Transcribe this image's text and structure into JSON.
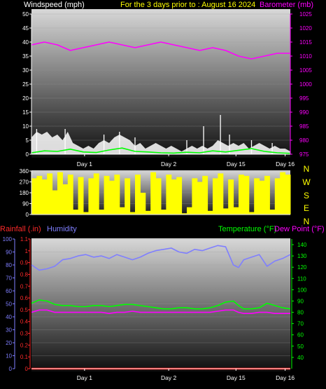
{
  "header": {
    "windspeed_label": "Windspeed (mph)",
    "title": "For the 3 days prior to : August 16 2024",
    "barometer_label": "Barometer (mb)"
  },
  "lower_header": {
    "rainfall_label": "Rainfall (.in)",
    "humidity_label": "Humidity",
    "temperature_label": "Temperature (°F)",
    "dewpoint_label": "Dew Point (°F)"
  },
  "colors": {
    "windspeed": "#ffffff",
    "gust": "#ffffff",
    "wind_avg": "#00ff00",
    "barometer": "#ff00ff",
    "direction": "#ffff00",
    "humidity": "#7f7fff",
    "temperature": "#00ff00",
    "dewpoint": "#ff00ff",
    "rainfall": "#ff0000",
    "rainfall_axis": "#ff2a2a",
    "humidity_axis": "#7f7fff",
    "temperature_axis": "#00ff00",
    "barometer_axis": "#ff00ff"
  },
  "chart_data": [
    {
      "type": "line",
      "x_ticks": [
        "Day 1",
        "Day 2",
        "Day 15",
        "Day 16"
      ],
      "x_tick_pos": [
        0.205,
        0.53,
        0.79,
        0.98
      ],
      "left_axis": {
        "ticks": [
          "0",
          "5",
          "10",
          "15",
          "20",
          "25",
          "30",
          "35",
          "40",
          "45",
          "50"
        ],
        "ylim": [
          0,
          50
        ]
      },
      "right_axis": {
        "ticks": [
          "975",
          "980",
          "985",
          "990",
          "995",
          "1000",
          "1005",
          "1010",
          "1015",
          "1020",
          "1025"
        ],
        "ylim": [
          975,
          1025
        ]
      },
      "series": [
        {
          "key": "windspeed",
          "axis": "left",
          "x": [
            0.0,
            0.02,
            0.04,
            0.06,
            0.08,
            0.1,
            0.12,
            0.14,
            0.16,
            0.18,
            0.2,
            0.22,
            0.24,
            0.26,
            0.28,
            0.3,
            0.32,
            0.34,
            0.36,
            0.38,
            0.4,
            0.42,
            0.44,
            0.46,
            0.48,
            0.5,
            0.52,
            0.54,
            0.56,
            0.58,
            0.6,
            0.62,
            0.64,
            0.66,
            0.68,
            0.7,
            0.72,
            0.74,
            0.76,
            0.78,
            0.8,
            0.82,
            0.84,
            0.86,
            0.88,
            0.9,
            0.92,
            0.94,
            0.96,
            0.98,
            1.0
          ],
          "y": [
            6,
            8,
            7,
            8,
            6,
            7,
            5,
            8,
            4,
            3,
            2,
            3,
            2,
            4,
            5,
            4,
            6,
            7,
            6,
            5,
            3,
            4,
            2,
            3,
            4,
            3,
            2,
            3,
            2,
            1,
            2,
            3,
            2,
            3,
            2,
            3,
            5,
            4,
            3,
            4,
            3,
            4,
            2,
            3,
            4,
            3,
            2,
            3,
            2,
            2,
            1
          ]
        },
        {
          "key": "gust",
          "axis": "left",
          "x": [
            0.02,
            0.13,
            0.28,
            0.34,
            0.4,
            0.6,
            0.665,
            0.73,
            0.765,
            0.85,
            0.93
          ],
          "y": [
            9,
            9,
            7,
            8,
            6,
            5,
            10,
            14,
            7,
            5,
            4
          ]
        },
        {
          "key": "wind_avg",
          "axis": "left",
          "x": [
            0.0,
            0.05,
            0.1,
            0.15,
            0.2,
            0.25,
            0.3,
            0.35,
            0.4,
            0.45,
            0.5,
            0.55,
            0.6,
            0.65,
            0.7,
            0.75,
            0.8,
            0.85,
            0.9,
            0.95,
            1.0
          ],
          "y": [
            0.5,
            1.2,
            1.0,
            1.8,
            0.8,
            0.6,
            1.5,
            2.2,
            1.0,
            0.8,
            0.5,
            0.4,
            0.7,
            0.5,
            1.2,
            0.8,
            1.4,
            2.0,
            1.0,
            0.5,
            0.3
          ]
        },
        {
          "key": "barometer",
          "axis": "right",
          "x": [
            0.0,
            0.05,
            0.1,
            0.15,
            0.2,
            0.25,
            0.3,
            0.35,
            0.4,
            0.45,
            0.5,
            0.55,
            0.6,
            0.65,
            0.7,
            0.75,
            0.8,
            0.85,
            0.9,
            0.95,
            1.0
          ],
          "y": [
            1014,
            1015,
            1014,
            1012,
            1013,
            1014,
            1015,
            1014,
            1013,
            1014,
            1015,
            1014,
            1013,
            1012,
            1013,
            1012,
            1010,
            1009,
            1010,
            1011,
            1011
          ]
        }
      ]
    },
    {
      "type": "area",
      "left_ticks": [
        "0",
        "90",
        "180",
        "270",
        "360"
      ],
      "ylim": [
        0,
        360
      ],
      "direction_labels": [
        "N",
        "W",
        "S",
        "E",
        "N"
      ],
      "x_ticks": [
        "Day 1",
        "Day 2",
        "Day 15",
        "Day 16"
      ],
      "x_tick_pos": [
        0.205,
        0.53,
        0.79,
        0.98
      ],
      "series": [
        {
          "key": "direction",
          "x": [
            0.0,
            0.02,
            0.04,
            0.06,
            0.08,
            0.1,
            0.12,
            0.14,
            0.16,
            0.18,
            0.2,
            0.22,
            0.24,
            0.26,
            0.28,
            0.3,
            0.32,
            0.34,
            0.36,
            0.38,
            0.4,
            0.42,
            0.44,
            0.46,
            0.48,
            0.5,
            0.52,
            0.54,
            0.56,
            0.58,
            0.6,
            0.62,
            0.64,
            0.66,
            0.68,
            0.7,
            0.72,
            0.74,
            0.76,
            0.78,
            0.8,
            0.82,
            0.84,
            0.86,
            0.88,
            0.9,
            0.92,
            0.94,
            0.96,
            0.98,
            1.0
          ],
          "y": [
            300,
            320,
            290,
            340,
            200,
            350,
            250,
            330,
            40,
            310,
            20,
            300,
            340,
            40,
            320,
            280,
            330,
            60,
            300,
            20,
            330,
            180,
            30,
            350,
            300,
            40,
            330,
            290,
            310,
            10,
            60,
            300,
            270,
            320,
            30,
            300,
            340,
            50,
            290,
            60,
            330,
            320,
            20,
            300,
            280,
            320,
            40,
            300,
            350,
            330,
            320
          ]
        }
      ]
    },
    {
      "type": "line",
      "x_ticks": [
        "Day 1",
        "Day 2",
        "Day 15",
        "Day 16"
      ],
      "x_tick_pos": [
        0.205,
        0.53,
        0.79,
        0.98
      ],
      "rainfall_axis": {
        "ticks": [
          "0",
          "0.1",
          "0.2",
          "0.3",
          "0.4",
          "0.5",
          "0.6",
          "0.7",
          "0.8",
          "0.9",
          "1",
          "1.1"
        ],
        "ylim": [
          0,
          1.1
        ]
      },
      "humidity_axis": {
        "ticks": [
          "0",
          "10",
          "20",
          "30",
          "40",
          "50",
          "60",
          "70",
          "80",
          "90",
          "100"
        ],
        "ylim": [
          0,
          100
        ]
      },
      "temperature_axis": {
        "ticks": [
          "40",
          "50",
          "60",
          "70",
          "80",
          "90",
          "100",
          "110",
          "120",
          "130",
          "140"
        ],
        "ylim": [
          30,
          145
        ]
      },
      "series": [
        {
          "key": "humidity",
          "axis": "humidity",
          "x": [
            0.0,
            0.03,
            0.06,
            0.09,
            0.12,
            0.15,
            0.18,
            0.21,
            0.24,
            0.27,
            0.3,
            0.33,
            0.36,
            0.39,
            0.42,
            0.45,
            0.48,
            0.51,
            0.54,
            0.57,
            0.6,
            0.63,
            0.66,
            0.69,
            0.72,
            0.75,
            0.78,
            0.8,
            0.82,
            0.85,
            0.88,
            0.91,
            0.94,
            0.97,
            1.0
          ],
          "y": [
            80,
            76,
            77,
            79,
            84,
            85,
            87,
            88,
            86,
            87,
            85,
            88,
            86,
            84,
            86,
            89,
            91,
            92,
            93,
            90,
            89,
            92,
            91,
            93,
            95,
            94,
            80,
            78,
            84,
            86,
            88,
            79,
            83,
            85,
            88
          ]
        },
        {
          "key": "temperature",
          "axis": "temperature",
          "x": [
            0.0,
            0.03,
            0.06,
            0.09,
            0.12,
            0.15,
            0.18,
            0.21,
            0.24,
            0.27,
            0.3,
            0.33,
            0.36,
            0.39,
            0.42,
            0.45,
            0.48,
            0.51,
            0.54,
            0.57,
            0.6,
            0.63,
            0.66,
            0.69,
            0.72,
            0.75,
            0.78,
            0.8,
            0.82,
            0.85,
            0.88,
            0.91,
            0.94,
            0.97,
            1.0
          ],
          "y": [
            88,
            91,
            90,
            87,
            86,
            86,
            85,
            85,
            86,
            86,
            85,
            86,
            87,
            87,
            86,
            85,
            84,
            83,
            83,
            84,
            84,
            83,
            83,
            84,
            86,
            89,
            90,
            86,
            83,
            83,
            84,
            88,
            86,
            84,
            83
          ]
        },
        {
          "key": "dewpoint",
          "axis": "temperature",
          "x": [
            0.0,
            0.03,
            0.06,
            0.09,
            0.12,
            0.15,
            0.18,
            0.21,
            0.24,
            0.27,
            0.3,
            0.33,
            0.36,
            0.39,
            0.42,
            0.45,
            0.48,
            0.51,
            0.54,
            0.57,
            0.6,
            0.63,
            0.66,
            0.69,
            0.72,
            0.75,
            0.78,
            0.8,
            0.82,
            0.85,
            0.88,
            0.91,
            0.94,
            0.97,
            1.0
          ],
          "y": [
            80,
            82,
            82,
            80,
            80,
            80,
            80,
            80,
            80,
            80,
            79,
            80,
            80,
            81,
            80,
            80,
            80,
            80,
            80,
            80,
            80,
            80,
            80,
            80,
            81,
            82,
            82,
            80,
            79,
            79,
            80,
            80,
            79,
            79,
            79
          ]
        },
        {
          "key": "rainfall",
          "axis": "rainfall",
          "x": [
            0.0,
            1.0
          ],
          "y": [
            0,
            0
          ]
        }
      ]
    }
  ]
}
